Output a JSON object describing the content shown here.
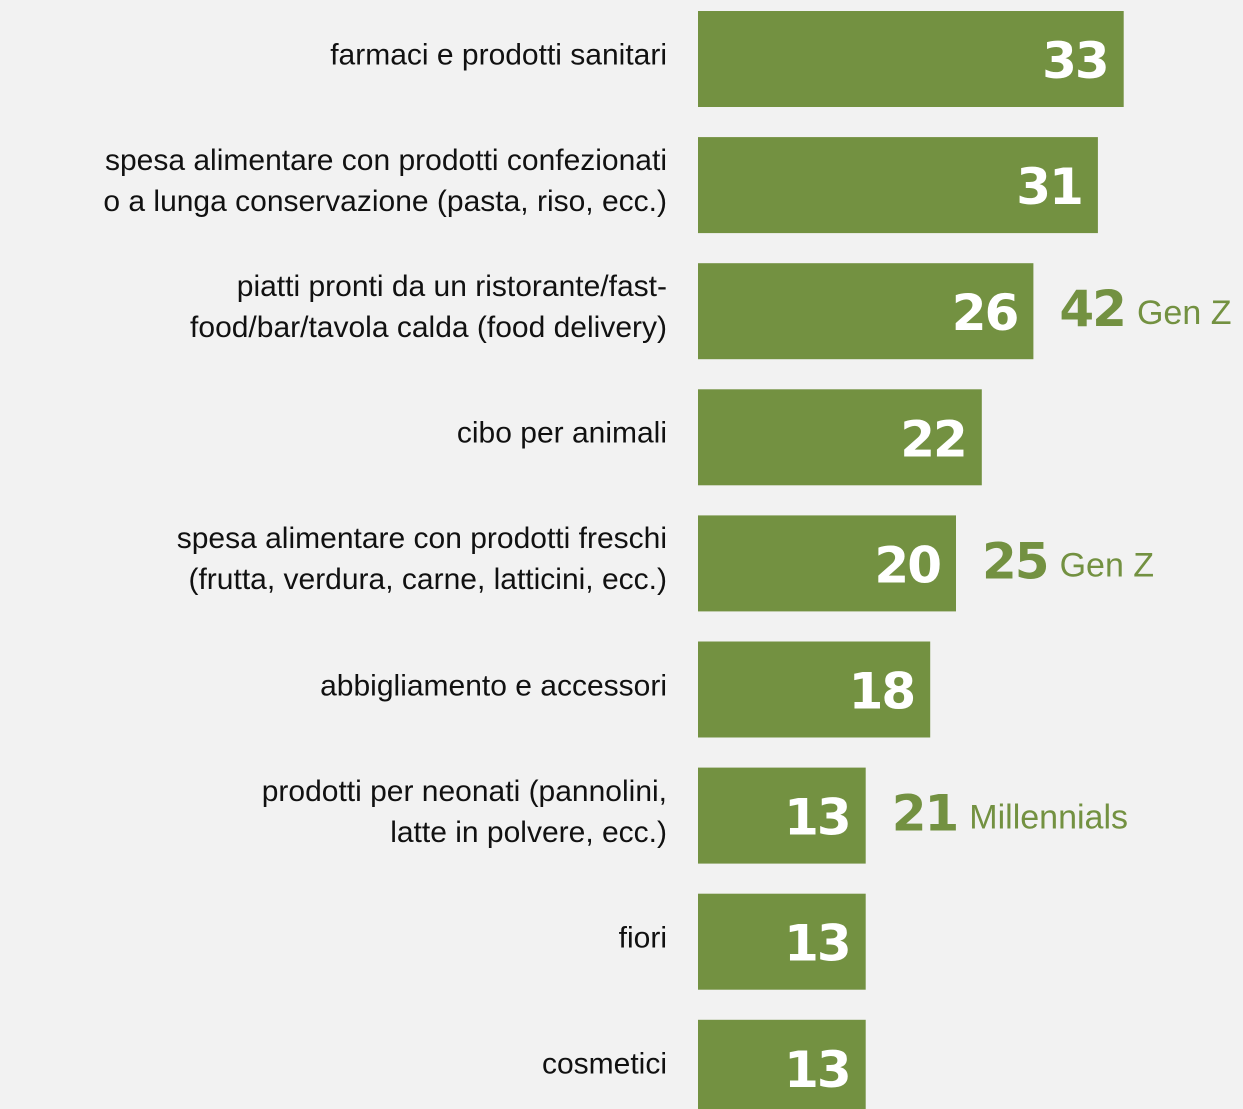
{
  "chart_data": {
    "type": "bar",
    "orientation": "horizontal",
    "categories": [
      "farmaci e prodotti sanitari",
      "spesa alimentare con prodotti confezionati\no a lunga conservazione (pasta, riso, ecc.)",
      "piatti pronti da un ristorante/fast-\nfood/bar/tavola calda (food delivery)",
      "cibo per animali",
      "spesa alimentare con prodotti freschi\n(frutta, verdura, carne, latticini, ecc.)",
      "abbigliamento e accessori",
      "prodotti per neonati (pannolini,\nlatte in polvere, ecc.)",
      "fiori",
      "cosmetici"
    ],
    "values": [
      33,
      31,
      26,
      22,
      20,
      18,
      13,
      13,
      13
    ],
    "color": "#739141",
    "annotations": [
      {
        "category": "piatti pronti da un ristorante/fast-\nfood/bar/tavola calda (food delivery)",
        "value": 42,
        "label": "Gen Z"
      },
      {
        "category": "spesa alimentare con prodotti freschi\n(frutta, verdura, carne, latticini, ecc.)",
        "value": 25,
        "label": "Gen Z"
      },
      {
        "category": "prodotti per neonati (pannolini,\nlatte in polvere, ecc.)",
        "value": 21,
        "label": "Millennials"
      }
    ]
  }
}
